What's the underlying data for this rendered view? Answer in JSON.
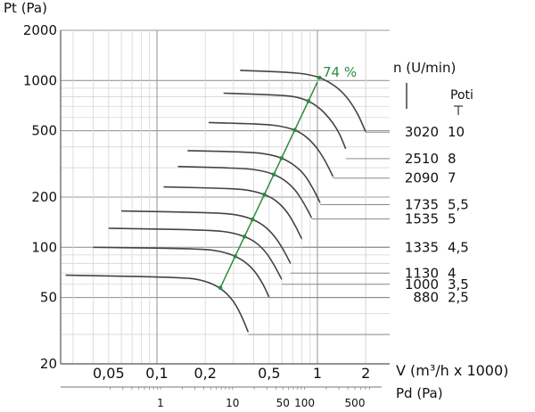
{
  "chart_data": {
    "type": "line",
    "y_axis": {
      "label": "Pt (Pa)",
      "scale": "log",
      "range": [
        20,
        2000
      ],
      "tick_values": [
        20,
        50,
        100,
        200,
        500,
        1000,
        2000
      ],
      "tick_labels": [
        "20",
        "50",
        "100",
        "200",
        "500",
        "1000",
        "2000"
      ]
    },
    "x_axis": {
      "label": "V (m³/h x 1000)",
      "scale": "log",
      "range": [
        0.02,
        3
      ],
      "tick_values": [
        0.05,
        0.1,
        0.2,
        0.5,
        1,
        2
      ],
      "tick_labels": [
        "0,05",
        "0,1",
        "0,2",
        "0,5",
        "1",
        "2"
      ]
    },
    "secondary_x_axis": {
      "label": "Pd (Pa)",
      "tick_values": [
        1,
        10,
        50,
        100,
        500
      ],
      "tick_labels": [
        "1",
        "10",
        "50",
        "100",
        "500"
      ]
    },
    "efficiency_line": {
      "label": "74 %",
      "color": "#2e8b3e",
      "points": [
        [
          0.25,
          58
        ],
        [
          0.4,
          110
        ],
        [
          0.55,
          165
        ],
        [
          0.75,
          330
        ],
        [
          1.0,
          980
        ]
      ]
    },
    "speed_header": "n (U/min)",
    "poti_header": "Poti",
    "curve_color": "#444444",
    "series": [
      {
        "name": "3020",
        "poti": "10",
        "label_pt": 490,
        "points": [
          [
            0.33,
            1150
          ],
          [
            0.62,
            1125
          ],
          [
            0.9,
            1090
          ],
          [
            1.15,
            1000
          ],
          [
            1.45,
            850
          ],
          [
            1.75,
            660
          ],
          [
            2.0,
            490
          ]
        ]
      },
      {
        "name": "2510",
        "poti": "8",
        "label_pt": 340,
        "points": [
          [
            0.26,
            840
          ],
          [
            0.55,
            820
          ],
          [
            0.75,
            800
          ],
          [
            0.95,
            730
          ],
          [
            1.15,
            620
          ],
          [
            1.35,
            500
          ],
          [
            1.5,
            390
          ]
        ]
      },
      {
        "name": "2090",
        "poti": "7",
        "label_pt": 260,
        "points": [
          [
            0.21,
            560
          ],
          [
            0.46,
            548
          ],
          [
            0.62,
            530
          ],
          [
            0.79,
            490
          ],
          [
            0.97,
            410
          ],
          [
            1.12,
            330
          ],
          [
            1.25,
            265
          ]
        ]
      },
      {
        "name": "1735",
        "poti": "5,5",
        "label_pt": 180,
        "points": [
          [
            0.155,
            380
          ],
          [
            0.38,
            372
          ],
          [
            0.52,
            360
          ],
          [
            0.66,
            330
          ],
          [
            0.82,
            280
          ],
          [
            0.94,
            225
          ],
          [
            1.04,
            185
          ]
        ]
      },
      {
        "name": "1535",
        "poti": "5",
        "label_pt": 148,
        "points": [
          [
            0.135,
            305
          ],
          [
            0.34,
            298
          ],
          [
            0.46,
            288
          ],
          [
            0.59,
            264
          ],
          [
            0.72,
            225
          ],
          [
            0.83,
            182
          ],
          [
            0.92,
            150
          ]
        ]
      },
      {
        "name": "1335",
        "poti": "4,5",
        "label_pt": 100,
        "points": [
          [
            0.11,
            230
          ],
          [
            0.3,
            225
          ],
          [
            0.4,
            218
          ],
          [
            0.52,
            200
          ],
          [
            0.63,
            170
          ],
          [
            0.72,
            138
          ],
          [
            0.8,
            112
          ]
        ]
      },
      {
        "name": "1130",
        "poti": "4",
        "label_pt": 70,
        "points": [
          [
            0.06,
            165
          ],
          [
            0.25,
            161
          ],
          [
            0.34,
            155
          ],
          [
            0.44,
            141
          ],
          [
            0.53,
            120
          ],
          [
            0.61,
            98
          ],
          [
            0.68,
            80
          ]
        ]
      },
      {
        "name": "1000",
        "poti": "3,5",
        "label_pt": 60,
        "points": [
          [
            0.05,
            130
          ],
          [
            0.22,
            127
          ],
          [
            0.3,
            122
          ],
          [
            0.39,
            112
          ],
          [
            0.47,
            96
          ],
          [
            0.54,
            78
          ],
          [
            0.6,
            64
          ]
        ]
      },
      {
        "name": "880",
        "poti": "2,5",
        "label_pt": 50,
        "points": [
          [
            0.04,
            100
          ],
          [
            0.19,
            98
          ],
          [
            0.26,
            94
          ],
          [
            0.33,
            86
          ],
          [
            0.4,
            74
          ],
          [
            0.46,
            60
          ],
          [
            0.5,
            50
          ]
        ]
      },
      {
        "name": "",
        "poti": "",
        "label_pt": 30,
        "points": [
          [
            0.027,
            68
          ],
          [
            0.15,
            66
          ],
          [
            0.2,
            63
          ],
          [
            0.25,
            57
          ],
          [
            0.3,
            48
          ],
          [
            0.34,
            38
          ],
          [
            0.37,
            31
          ]
        ]
      }
    ],
    "grid": true
  }
}
